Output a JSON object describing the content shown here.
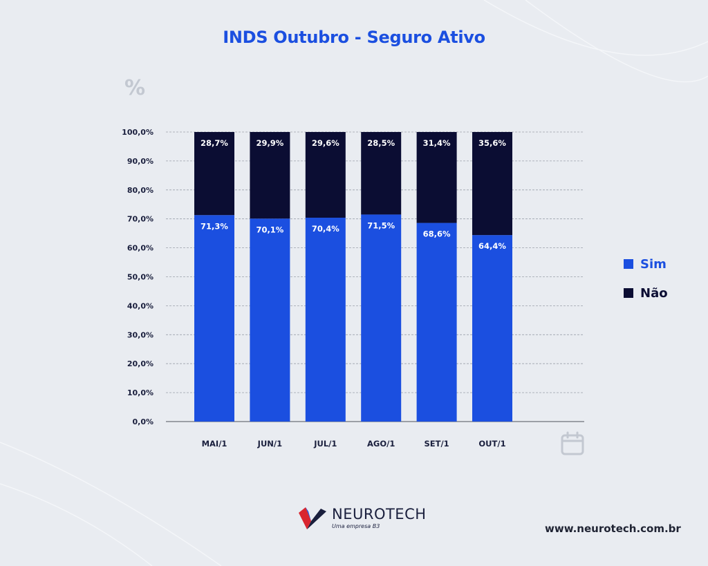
{
  "chart_data": {
    "type": "bar",
    "stacked": true,
    "title": "INDS Outubro - Seguro Ativo",
    "ylabel": "%",
    "ylim": [
      0,
      100
    ],
    "yticks": [
      "0,0%",
      "10,0%",
      "20,0%",
      "30,0%",
      "40,0%",
      "50,0%",
      "60,0%",
      "70,0%",
      "80,0%",
      "90,0%",
      "100,0%"
    ],
    "categories": [
      "MAI/1",
      "JUN/1",
      "JUL/1",
      "AGO/1",
      "SET/1",
      "OUT/1"
    ],
    "series": [
      {
        "name": "Sim",
        "color": "#1b4fe0",
        "values": [
          71.3,
          70.1,
          70.4,
          71.5,
          68.6,
          64.4
        ],
        "labels": [
          "71,3%",
          "70,1%",
          "70,4%",
          "71,5%",
          "68,6%",
          "64,4%"
        ]
      },
      {
        "name": "Não",
        "color": "#0b0d33",
        "values": [
          28.7,
          29.9,
          29.6,
          28.5,
          31.4,
          35.6
        ],
        "labels": [
          "28,7%",
          "29,9%",
          "29,6%",
          "28,5%",
          "31,4%",
          "35,6%"
        ]
      }
    ],
    "grid": true,
    "legend_position": "right"
  },
  "brand": {
    "name": "NEUROTECH",
    "subtitle": "Uma empresa B3",
    "website": "www.neurotech.com.br"
  },
  "icons": {
    "x_axis": "calendar-icon",
    "logo": "neurotech-logo-icon"
  }
}
